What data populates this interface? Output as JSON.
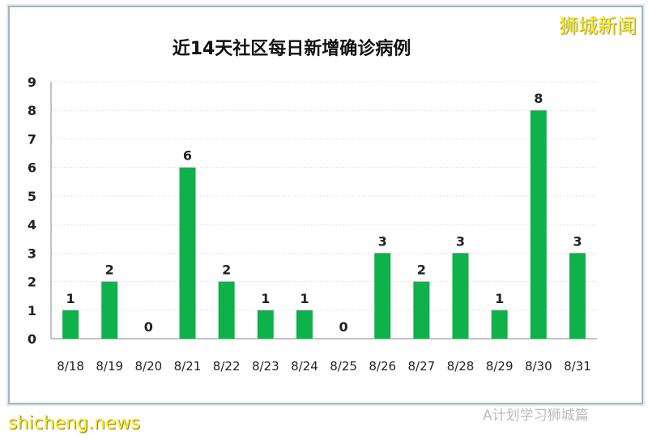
{
  "brand": "狮城新闻",
  "footer": {
    "watermark_left": "shicheng.news",
    "watermark_right": "A计划学习狮城篇"
  },
  "chart_data": {
    "type": "bar",
    "title": "近14天社区每日新增确诊病例",
    "categories": [
      "8/18",
      "8/19",
      "8/20",
      "8/21",
      "8/22",
      "8/23",
      "8/24",
      "8/25",
      "8/26",
      "8/27",
      "8/28",
      "8/29",
      "8/30",
      "8/31"
    ],
    "values": [
      1,
      2,
      0,
      6,
      2,
      1,
      1,
      0,
      3,
      2,
      3,
      1,
      8,
      3
    ],
    "ylim": [
      0,
      9
    ],
    "yticks": [
      0,
      1,
      2,
      3,
      4,
      5,
      6,
      7,
      8,
      9
    ],
    "grid": true,
    "bar_color": "#0fb14a",
    "xlabel": "",
    "ylabel": ""
  }
}
